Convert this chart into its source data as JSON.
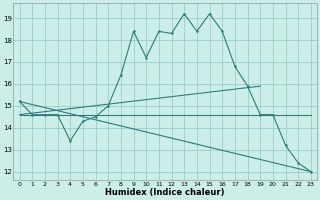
{
  "xlabel": "Humidex (Indice chaleur)",
  "bg_color": "#cceee8",
  "grid_color": "#99cccc",
  "line_color": "#2d7d78",
  "xlim": [
    -0.5,
    23.5
  ],
  "ylim": [
    11.6,
    19.7
  ],
  "yticks": [
    12,
    13,
    14,
    15,
    16,
    17,
    18,
    19
  ],
  "xticks": [
    0,
    1,
    2,
    3,
    4,
    5,
    6,
    7,
    8,
    9,
    10,
    11,
    12,
    13,
    14,
    15,
    16,
    17,
    18,
    19,
    20,
    21,
    22,
    23
  ],
  "line1_x": [
    0,
    1,
    2,
    3,
    4,
    5,
    6,
    7,
    8,
    9,
    10,
    11,
    12,
    13,
    14,
    15,
    16,
    17,
    18,
    19,
    20,
    21,
    22,
    23
  ],
  "line1_y": [
    15.2,
    14.6,
    14.6,
    14.6,
    13.4,
    14.3,
    14.5,
    15.0,
    16.4,
    18.4,
    17.2,
    18.4,
    18.3,
    19.2,
    18.4,
    19.2,
    18.4,
    16.8,
    15.9,
    14.6,
    14.6,
    13.2,
    12.4,
    12.0
  ],
  "line2_x": [
    0,
    23
  ],
  "line2_y": [
    14.6,
    14.6
  ],
  "line3_x": [
    0,
    23
  ],
  "line3_y": [
    15.2,
    12.0
  ],
  "line4_x": [
    0,
    19
  ],
  "line4_y": [
    14.6,
    15.9
  ]
}
